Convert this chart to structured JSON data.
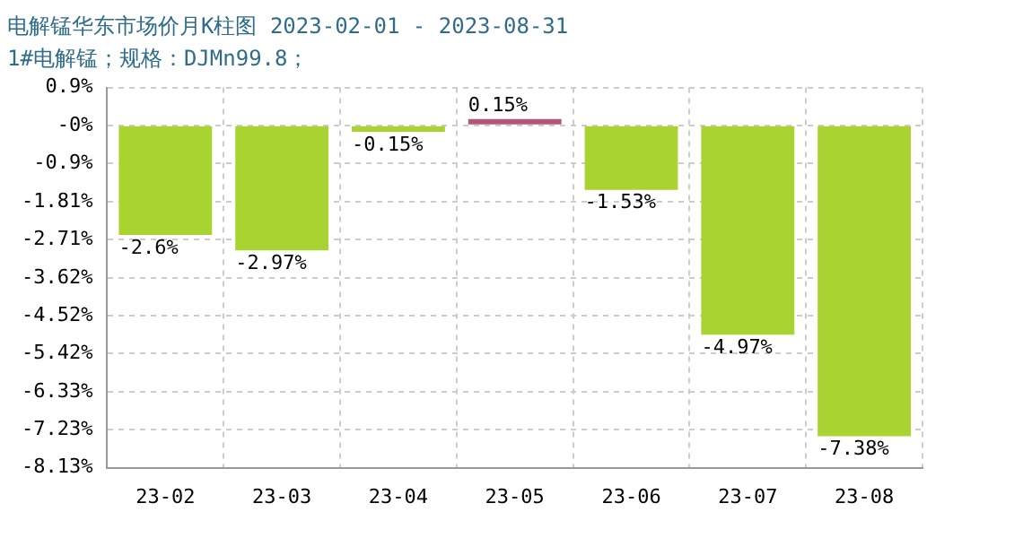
{
  "chart_data": {
    "type": "bar",
    "title": "电解锰华东市场价月K柱图 2023-02-01 - 2023-08-31",
    "subtitle": "1#电解锰；规格：DJMn99.8；",
    "categories": [
      "23-02",
      "23-03",
      "23-04",
      "23-05",
      "23-06",
      "23-07",
      "23-08"
    ],
    "values": [
      -2.6,
      -2.97,
      -0.15,
      0.15,
      -1.53,
      -4.97,
      -7.38
    ],
    "colors": [
      "#a8d330",
      "#a8d330",
      "#a8d330",
      "#b5557a",
      "#a8d330",
      "#a8d330",
      "#a8d330"
    ],
    "value_labels": [
      "-2.6%",
      "-2.97%",
      "-0.15%",
      "0.15%",
      "-1.53%",
      "-4.97%",
      "-7.38%"
    ],
    "ylim": [
      -8.13,
      0.9
    ],
    "yticks": [
      {
        "value": 0.9,
        "label": "0.9%"
      },
      {
        "value": 0,
        "label": "-0%"
      },
      {
        "value": -0.9,
        "label": "-0.9%"
      },
      {
        "value": -1.81,
        "label": "-1.81%"
      },
      {
        "value": -2.71,
        "label": "-2.71%"
      },
      {
        "value": -3.62,
        "label": "-3.62%"
      },
      {
        "value": -4.52,
        "label": "-4.52%"
      },
      {
        "value": -5.42,
        "label": "-5.42%"
      },
      {
        "value": -6.33,
        "label": "-6.33%"
      },
      {
        "value": -7.23,
        "label": "-7.23%"
      },
      {
        "value": -8.13,
        "label": "-8.13%"
      }
    ],
    "grid": true
  }
}
